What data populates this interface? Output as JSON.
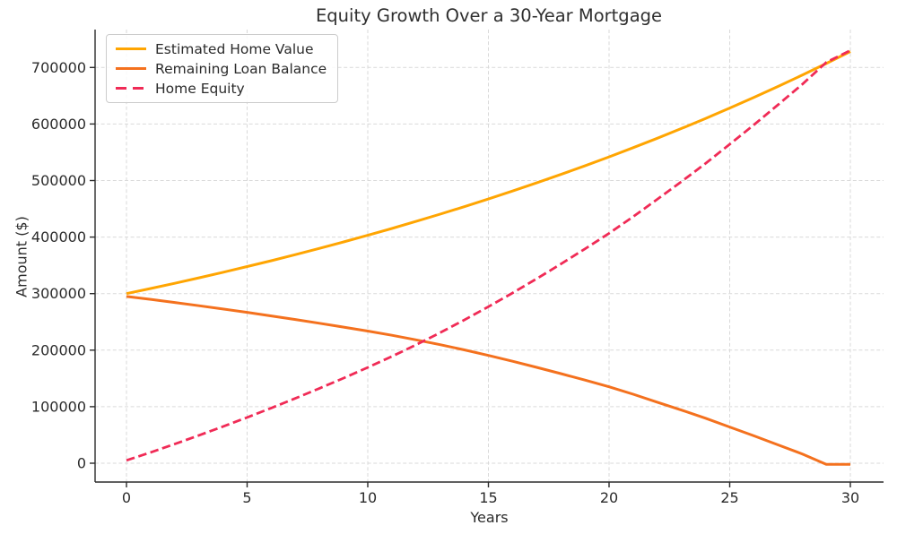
{
  "figure": {
    "title": "Equity Growth Over a 30-Year Mortgage",
    "xlabel": "Years",
    "ylabel": "Amount ($)"
  },
  "chart_data": {
    "type": "line",
    "title": "Equity Growth Over a 30-Year Mortgage",
    "xlabel": "Years",
    "ylabel": "Amount ($)",
    "grid": true,
    "grid_color": "#d9d9d9",
    "legend_position": "upper left",
    "x_ticks": [
      0,
      5,
      10,
      15,
      20,
      25,
      30
    ],
    "y_ticks": [
      0,
      100000,
      200000,
      300000,
      400000,
      500000,
      600000,
      700000
    ],
    "xlim": [
      -1.3,
      31.4
    ],
    "ylim": [
      -35000,
      768000
    ],
    "x": [
      0,
      1,
      2,
      3,
      4,
      5,
      6,
      7,
      8,
      9,
      10,
      11,
      12,
      13,
      14,
      15,
      16,
      17,
      18,
      19,
      20,
      21,
      22,
      23,
      24,
      25,
      26,
      27,
      28,
      29,
      30
    ],
    "series": [
      {
        "name": "Estimated Home Value",
        "color": "#FFA502",
        "style": "solid",
        "values": [
          300000,
          309000,
          318270,
          327818,
          337653,
          347782,
          358216,
          368962,
          380031,
          391432,
          403175,
          415270,
          427728,
          440560,
          453777,
          467390,
          481412,
          495854,
          510730,
          526052,
          541833,
          558088,
          574831,
          592076,
          609838,
          628138,
          646982,
          666391,
          686383,
          706974,
          728178
        ]
      },
      {
        "name": "Remaining Loan Balance",
        "color": "#F4711E",
        "style": "solid",
        "values": [
          295000,
          289800,
          284300,
          278600,
          272800,
          266800,
          260600,
          254200,
          247600,
          240800,
          233800,
          226300,
          218300,
          209700,
          200400,
          190600,
          180300,
          169600,
          158500,
          147000,
          135200,
          122000,
          108000,
          94000,
          79500,
          64000,
          48500,
          32500,
          16500,
          -2000,
          -2000
        ]
      },
      {
        "name": "Home Equity",
        "color": "#F02B56",
        "style": "dashed",
        "values": [
          5000,
          19200,
          33970,
          49218,
          64853,
          80982,
          97616,
          114762,
          132431,
          150632,
          169375,
          188970,
          209428,
          230860,
          253377,
          276790,
          301112,
          326254,
          352230,
          379052,
          406633,
          436088,
          466831,
          498076,
          530338,
          564138,
          598482,
          633891,
          669883,
          708974,
          730178
        ]
      }
    ]
  }
}
